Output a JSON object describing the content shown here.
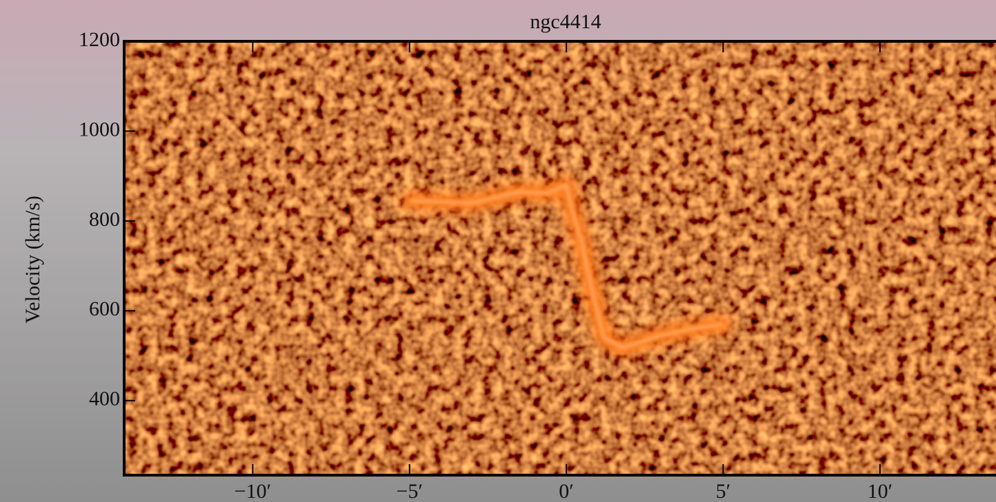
{
  "chart_data": {
    "type": "pv-diagram",
    "title": "ngc4414",
    "ylabel": "Velocity (km/s)",
    "xlim": [
      -14.1,
      13.7
    ],
    "ylim": [
      234,
      1200
    ],
    "xticks": [
      {
        "value": -10,
        "label": "−10′"
      },
      {
        "value": -5,
        "label": "−5′"
      },
      {
        "value": 0,
        "label": "0′"
      },
      {
        "value": 5,
        "label": "5′"
      },
      {
        "value": 10,
        "label": "10′"
      }
    ],
    "yticks": [
      400,
      600,
      800,
      1000,
      1200
    ],
    "color": "#ff7a1a",
    "ridge": {
      "x": [
        -5,
        -3,
        -1.5,
        -0.6,
        0,
        0.2,
        0.5,
        0.8,
        1.2,
        1.8,
        3,
        4,
        5
      ],
      "y": [
        845,
        840,
        865,
        862,
        880,
        820,
        750,
        650,
        540,
        518,
        545,
        560,
        570
      ]
    }
  }
}
